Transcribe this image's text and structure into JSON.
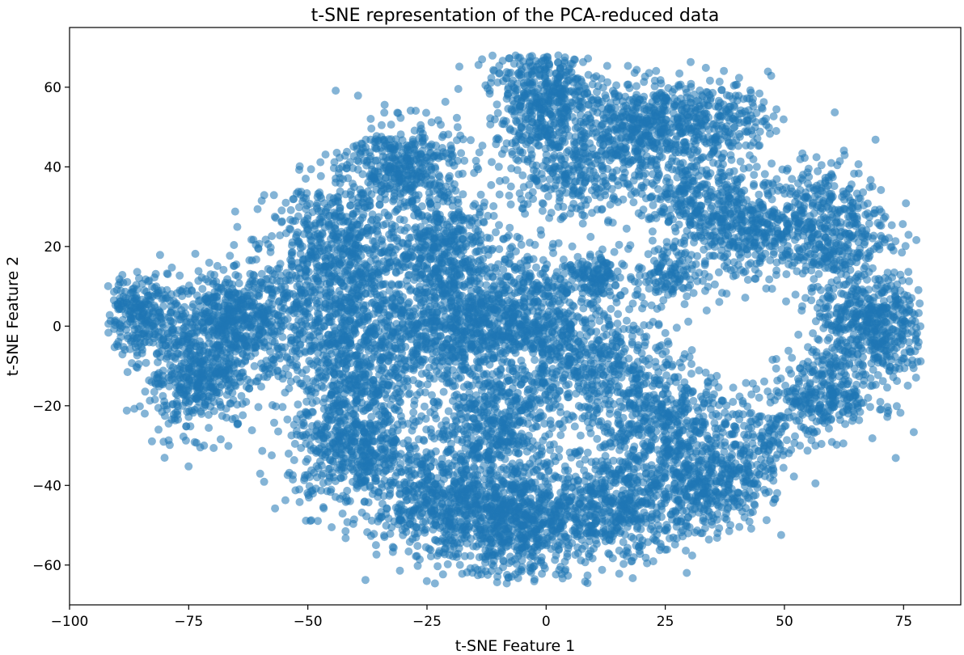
{
  "chart_data": {
    "type": "scatter",
    "title": "t-SNE representation of the PCA-reduced data",
    "xlabel": "t-SNE Feature 1",
    "ylabel": "t-SNE Feature 2",
    "xlim": [
      -100,
      87
    ],
    "ylim": [
      -70,
      75
    ],
    "x_ticks": [
      -100,
      -75,
      -50,
      -25,
      0,
      25,
      50,
      75
    ],
    "x_tick_labels": [
      "−100",
      "−75",
      "−50",
      "−25",
      "0",
      "25",
      "50",
      "75"
    ],
    "y_ticks": [
      -60,
      -40,
      -20,
      0,
      20,
      40,
      60
    ],
    "y_tick_labels": [
      "−60",
      "−40",
      "−20",
      "0",
      "20",
      "40",
      "60"
    ],
    "grid": false,
    "marker_color": "#1f77b4",
    "marker_alpha": 0.55,
    "series": [
      {
        "point_count_shown": 9000,
        "clusters": [
          {
            "cx": -85,
            "cy": 3,
            "sx": 4,
            "sy": 5,
            "n": 260
          },
          {
            "cx": -73,
            "cy": -12,
            "sx": 6,
            "sy": 7,
            "n": 520
          },
          {
            "cx": -68,
            "cy": 4,
            "sx": 5,
            "sy": 5,
            "n": 220
          },
          {
            "cx": -60,
            "cy": 2,
            "sx": 5,
            "sy": 7,
            "n": 300
          },
          {
            "cx": -44,
            "cy": 18,
            "sx": 7,
            "sy": 9,
            "n": 600
          },
          {
            "cx": -30,
            "cy": 40,
            "sx": 6,
            "sy": 6,
            "n": 420
          },
          {
            "cx": -22,
            "cy": 20,
            "sx": 6,
            "sy": 6,
            "n": 380
          },
          {
            "cx": -40,
            "cy": -5,
            "sx": 7,
            "sy": 9,
            "n": 620
          },
          {
            "cx": -20,
            "cy": 0,
            "sx": 7,
            "sy": 8,
            "n": 600
          },
          {
            "cx": -5,
            "cy": 5,
            "sx": 6,
            "sy": 8,
            "n": 450
          },
          {
            "cx": -40,
            "cy": -30,
            "sx": 7,
            "sy": 8,
            "n": 600
          },
          {
            "cx": -20,
            "cy": -45,
            "sx": 8,
            "sy": 7,
            "n": 620
          },
          {
            "cx": -5,
            "cy": -50,
            "sx": 7,
            "sy": 7,
            "n": 550
          },
          {
            "cx": -10,
            "cy": -25,
            "sx": 7,
            "sy": 8,
            "n": 500
          },
          {
            "cx": 0,
            "cy": 58,
            "sx": 6,
            "sy": 6,
            "n": 450
          },
          {
            "cx": 5,
            "cy": 40,
            "sx": 7,
            "sy": 7,
            "n": 350
          },
          {
            "cx": 20,
            "cy": 50,
            "sx": 7,
            "sy": 6,
            "n": 420
          },
          {
            "cx": 35,
            "cy": 52,
            "sx": 6,
            "sy": 5,
            "n": 260
          },
          {
            "cx": 30,
            "cy": 33,
            "sx": 6,
            "sy": 5,
            "n": 220
          },
          {
            "cx": 10,
            "cy": 12,
            "sx": 3,
            "sy": 3,
            "n": 140
          },
          {
            "cx": 25,
            "cy": 13,
            "sx": 3,
            "sy": 4,
            "n": 120
          },
          {
            "cx": 40,
            "cy": 25,
            "sx": 6,
            "sy": 7,
            "n": 360
          },
          {
            "cx": 58,
            "cy": 25,
            "sx": 7,
            "sy": 8,
            "n": 500
          },
          {
            "cx": 68,
            "cy": 0,
            "sx": 6,
            "sy": 7,
            "n": 520
          },
          {
            "cx": 58,
            "cy": -18,
            "sx": 6,
            "sy": 5,
            "n": 300
          },
          {
            "cx": 10,
            "cy": -10,
            "sx": 8,
            "sy": 8,
            "n": 500
          },
          {
            "cx": 25,
            "cy": -25,
            "sx": 7,
            "sy": 8,
            "n": 450
          },
          {
            "cx": 15,
            "cy": -45,
            "sx": 8,
            "sy": 7,
            "n": 550
          },
          {
            "cx": 35,
            "cy": -40,
            "sx": 6,
            "sy": 6,
            "n": 350
          },
          {
            "cx": 45,
            "cy": -30,
            "sx": 4,
            "sy": 5,
            "n": 130
          }
        ]
      }
    ]
  }
}
